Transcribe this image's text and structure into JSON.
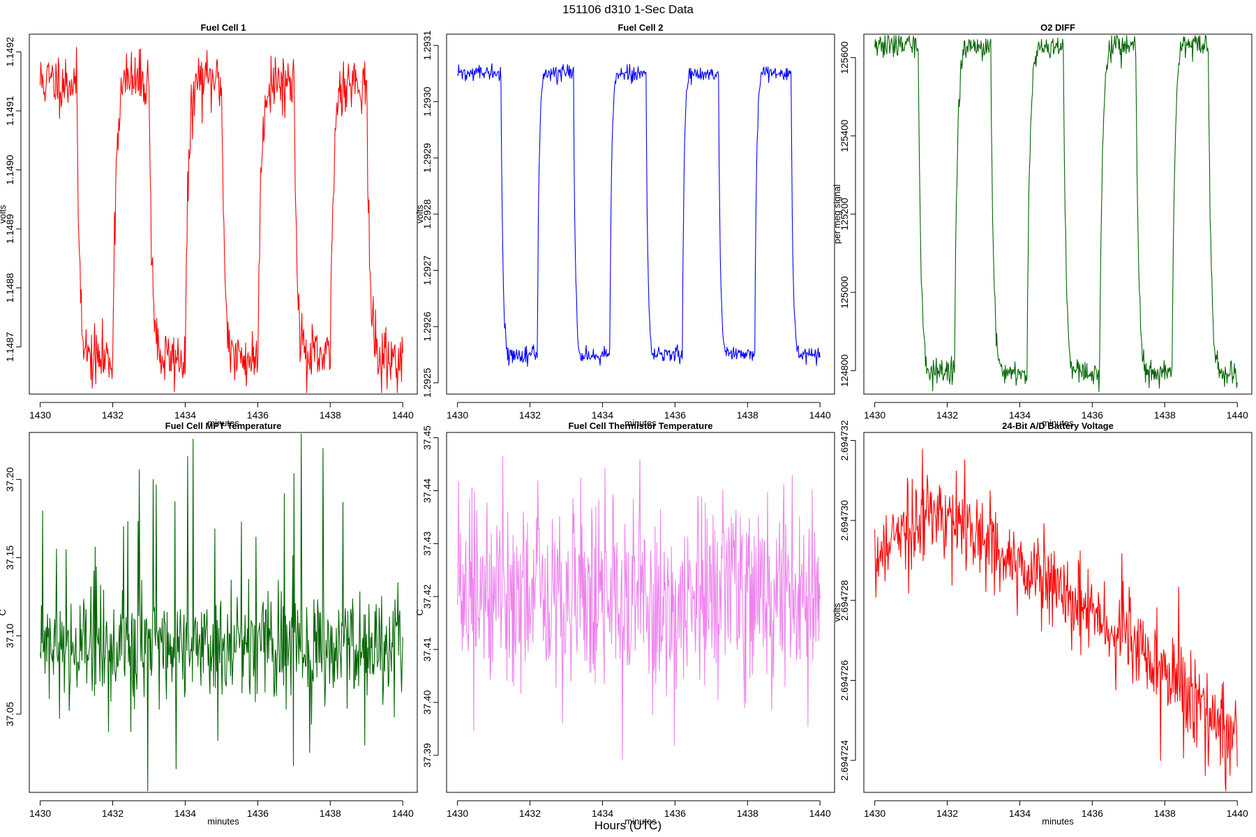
{
  "figure": {
    "title": "151106   d310   1-Sec Data",
    "xlabel": "Hours (UTC)"
  },
  "chart_data": [
    {
      "type": "line",
      "title": "Fuel Cell 1",
      "xlabel": "minutes",
      "ylabel": "volts",
      "color": "#ff0000",
      "xlim": [
        1429.7,
        1440.4
      ],
      "ylim": [
        1.14862,
        1.14923
      ],
      "xticks": [
        1430,
        1432,
        1434,
        1436,
        1438,
        1440
      ],
      "yticks": [
        1.1487,
        1.1488,
        1.1489,
        1.149,
        1.1491,
        1.1492
      ],
      "ytick_labels": [
        "1.1487",
        "1.1488",
        "1.1489",
        "1.1490",
        "1.1491",
        "1.1492"
      ],
      "pattern": {
        "kind": "square",
        "start": 1430.0,
        "period": 2.0,
        "high_first": true,
        "high": 1.14915,
        "low": 1.14868,
        "noise": 2.5e-05,
        "trans": 0.35,
        "seed": 11
      }
    },
    {
      "type": "line",
      "title": "Fuel Cell 2",
      "xlabel": "minutes",
      "ylabel": "volts",
      "color": "#0000ff",
      "xlim": [
        1429.7,
        1440.4
      ],
      "ylim": [
        1.29248,
        1.29312
      ],
      "xticks": [
        1430,
        1432,
        1434,
        1436,
        1438,
        1440
      ],
      "yticks": [
        1.2925,
        1.2926,
        1.2927,
        1.2928,
        1.2929,
        1.293,
        1.2931
      ],
      "ytick_labels": [
        "1.2925",
        "1.2926",
        "1.2927",
        "1.2928",
        "1.2929",
        "1.2930",
        "1.2931"
      ],
      "pattern": {
        "kind": "square",
        "start": 1430.2,
        "period": 2.0,
        "high_first": true,
        "high": 1.29305,
        "low": 1.29255,
        "noise": 7e-06,
        "trans": 0.2,
        "seed": 22
      }
    },
    {
      "type": "line",
      "title": "O2 DIFF",
      "xlabel": "minutes",
      "ylabel": "per meg signal",
      "color": "#006400",
      "xlim": [
        1429.7,
        1440.4
      ],
      "ylim": [
        124740,
        125660
      ],
      "xticks": [
        1430,
        1432,
        1434,
        1436,
        1438,
        1440
      ],
      "yticks": [
        124800,
        125000,
        125200,
        125400,
        125600
      ],
      "ytick_labels": [
        "124800",
        "125000",
        "125200",
        "125400",
        "125600"
      ],
      "pattern": {
        "kind": "square",
        "start": 1430.2,
        "period": 2.0,
        "high_first": true,
        "high": 125630,
        "low": 124795,
        "noise": 16,
        "trans": 0.3,
        "seed": 33
      }
    },
    {
      "type": "line",
      "title": "Fuel Cell MPT Temperature",
      "xlabel": "minutes",
      "ylabel": "C",
      "color": "#006400",
      "xlim": [
        1429.7,
        1440.4
      ],
      "ylim": [
        37.0,
        37.23
      ],
      "xticks": [
        1430,
        1432,
        1434,
        1436,
        1438,
        1440
      ],
      "yticks": [
        37.05,
        37.1,
        37.15,
        37.2
      ],
      "ytick_labels": [
        "37.05",
        "37.10",
        "37.15",
        "37.20"
      ],
      "pattern": {
        "kind": "noise",
        "base": 37.093,
        "slope": 0,
        "noise": 0.018,
        "spike_prob": 0.06,
        "spike_amp": 0.09,
        "seed": 44
      }
    },
    {
      "type": "line",
      "title": "Fuel Cell Thermistor Temperature",
      "xlabel": "minutes",
      "ylabel": "C",
      "color": "#ee82ee",
      "xlim": [
        1429.7,
        1440.4
      ],
      "ylim": [
        37.383,
        37.451
      ],
      "xticks": [
        1430,
        1432,
        1434,
        1436,
        1438,
        1440
      ],
      "yticks": [
        37.39,
        37.4,
        37.41,
        37.42,
        37.43,
        37.44,
        37.45
      ],
      "ytick_labels": [
        "37.39",
        "37.40",
        "37.41",
        "37.42",
        "37.43",
        "37.44",
        "37.45"
      ],
      "pattern": {
        "kind": "noise",
        "base": 37.42,
        "slope": 0,
        "noise": 0.009,
        "spike_prob": 0.05,
        "spike_amp": 0.016,
        "seed": 55
      }
    },
    {
      "type": "line",
      "title": "24-Bit A/D Battery Voltage",
      "xlabel": "minutes",
      "ylabel": "volts",
      "color": "#ff0000",
      "xlim": [
        1429.7,
        1440.4
      ],
      "ylim": [
        2.6947232,
        2.6947322
      ],
      "xticks": [
        1430,
        1432,
        1434,
        1436,
        1438,
        1440
      ],
      "yticks": [
        2.694724,
        2.694726,
        2.694728,
        2.69473,
        2.694732
      ],
      "ytick_labels": [
        "2.694724",
        "2.694726",
        "2.694728",
        "2.694730",
        "2.694732"
      ],
      "pattern": {
        "kind": "trend",
        "points": [
          [
            1430,
            2.6947288
          ],
          [
            1430.4,
            2.6947295
          ],
          [
            1431.8,
            2.6947302
          ],
          [
            1434,
            2.6947288
          ],
          [
            1436,
            2.6947276
          ],
          [
            1438,
            2.6947262
          ],
          [
            1440,
            2.6947245
          ]
        ],
        "noise": 5e-07,
        "spike_prob": 0.05,
        "spike_amp": 1.2e-06,
        "seed": 66
      }
    }
  ]
}
